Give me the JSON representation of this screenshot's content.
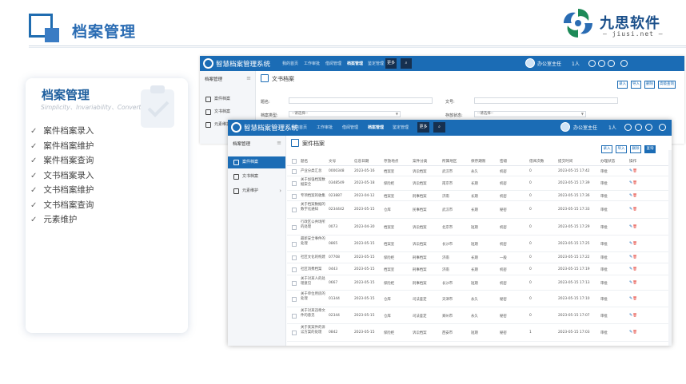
{
  "slide": {
    "title": "档案管理",
    "logo_name": "九思软件",
    "logo_domain": "— jiusi.net —",
    "accent": "#2a6cb3"
  },
  "card": {
    "title": "档案管理",
    "subtitle": "Simplicity、Invariability、Convertibility",
    "check_icon": "✓",
    "features": [
      "案件档案录入",
      "案件档案维护",
      "案件档案查询",
      "文书档案录入",
      "文书档案维护",
      "文书档案查询",
      "元素维护"
    ]
  },
  "app": {
    "system_name": "智慧档案管理系统",
    "nav": [
      "我的首页",
      "工作审批",
      "借阅管理",
      "档案管理",
      "鉴定管理"
    ],
    "nav_active": "档案管理",
    "nav_extra": "更多",
    "user": "办公室主任",
    "user_extra": "1人",
    "header_color": "#1b6cb5"
  },
  "window1": {
    "sidebar_head": "档案管理",
    "sidebar_items": [
      "案件档案",
      "文书档案",
      "元素维护"
    ],
    "page_title": "文书档案",
    "buttons": [
      "录入",
      "导入",
      "删除",
      "高级查询"
    ],
    "form": {
      "label_title": "题名:",
      "label_doc_no": "文号:",
      "label_type": "档案类型:",
      "type_value": "--请选择--",
      "label_status": "存放状态:",
      "status_value": "--请选择--"
    }
  },
  "window2": {
    "sidebar_head": "档案管理",
    "sidebar_items": [
      "案件档案",
      "文书档案",
      "元素维护"
    ],
    "page_title": "案件档案",
    "buttons": [
      "录入",
      "导入",
      "删除",
      "查询"
    ],
    "columns": [
      "题名",
      "文号",
      "信息日期",
      "存放地点",
      "案件分类",
      "所属地区",
      "保存期限",
      "密级",
      "借阅次数",
      "提交时间",
      "办理状态",
      "操作"
    ],
    "rows": [
      {
        "title": "产业分类汇总",
        "no": "0000348",
        "date": "2023-05-16",
        "place": "档案室",
        "cat": "诉讼档案",
        "region": "武汉市",
        "term": "永久",
        "level": "机密",
        "count": "0",
        "time": "2023-05-15 17:42",
        "status": "审批"
      },
      {
        "title": "关于加强档案数据安全",
        "no": "0348549",
        "date": "2023-05-18",
        "place": "保险柜",
        "cat": "诉讼档案",
        "region": "南京市",
        "term": "长期",
        "level": "机密",
        "count": "0",
        "time": "2023-05-15 17:39",
        "status": "审批"
      },
      {
        "title": "专项档案的收集",
        "no": "023887",
        "date": "2023-04-12",
        "place": "档案室",
        "cat": "刑事档案",
        "region": "济南",
        "term": "长期",
        "level": "机密",
        "count": "0",
        "time": "2023-05-15 17:36",
        "status": "审批"
      },
      {
        "title": "关于档案数据的数字化通知",
        "no": "0234442",
        "date": "2023-05-15",
        "place": "仓库",
        "cat": "民事档案",
        "region": "武汉市",
        "term": "长期",
        "level": "秘密",
        "count": "0",
        "time": "2023-05-15 17:33",
        "status": "审批"
      },
      {
        "title": "行政区公共场所的处理",
        "no": "0073",
        "date": "2023-04-30",
        "place": "档案室",
        "cat": "诉讼档案",
        "region": "北京市",
        "term": "短期",
        "level": "机密",
        "count": "0",
        "time": "2023-05-15 17:29",
        "status": "审批"
      },
      {
        "title": "最新安全事件的处理",
        "no": "0865",
        "date": "2023-05-15",
        "place": "档案室",
        "cat": "诉讼档案",
        "region": "长沙市",
        "term": "短期",
        "level": "机密",
        "count": "0",
        "time": "2023-05-15 17:25",
        "status": "审批"
      },
      {
        "title": "社区文化的构建",
        "no": "07708",
        "date": "2023-05-15",
        "place": "保险柜",
        "cat": "刑事档案",
        "region": "济南",
        "term": "长期",
        "level": "一般",
        "count": "0",
        "time": "2023-05-15 17:22",
        "status": "审批"
      },
      {
        "title": "社区消费档案",
        "no": "0443",
        "date": "2023-05-15",
        "place": "档案室",
        "cat": "刑事档案",
        "region": "济南",
        "term": "长期",
        "level": "机密",
        "count": "0",
        "time": "2023-05-15 17:19",
        "status": "审批"
      },
      {
        "title": "关于对某人的处理意见",
        "no": "0667",
        "date": "2023-05-15",
        "place": "保险柜",
        "cat": "刑事档案",
        "region": "长沙市",
        "term": "短期",
        "level": "机密",
        "count": "0",
        "time": "2023-05-15 17:13",
        "status": "审批"
      },
      {
        "title": "关于单位用房的处理",
        "no": "01344",
        "date": "2023-05-15",
        "place": "仓库",
        "cat": "司法鉴定",
        "region": "天津市",
        "term": "永久",
        "level": "秘密",
        "count": "0",
        "time": "2023-05-15 17:10",
        "status": "审批"
      },
      {
        "title": "关于对某违章文件的意见",
        "no": "02344",
        "date": "2023-05-15",
        "place": "仓库",
        "cat": "司法鉴定",
        "region": "郑州市",
        "term": "永久",
        "level": "秘密",
        "count": "0",
        "time": "2023-05-15 17:07",
        "status": "审批"
      },
      {
        "title": "关于某案件的诉讼方案的处理",
        "no": "0842",
        "date": "2023-05-15",
        "place": "保险柜",
        "cat": "诉讼档案",
        "region": "西安市",
        "term": "短期",
        "level": "秘密",
        "count": "1",
        "time": "2023-05-15 17:03",
        "status": "审批"
      }
    ]
  }
}
